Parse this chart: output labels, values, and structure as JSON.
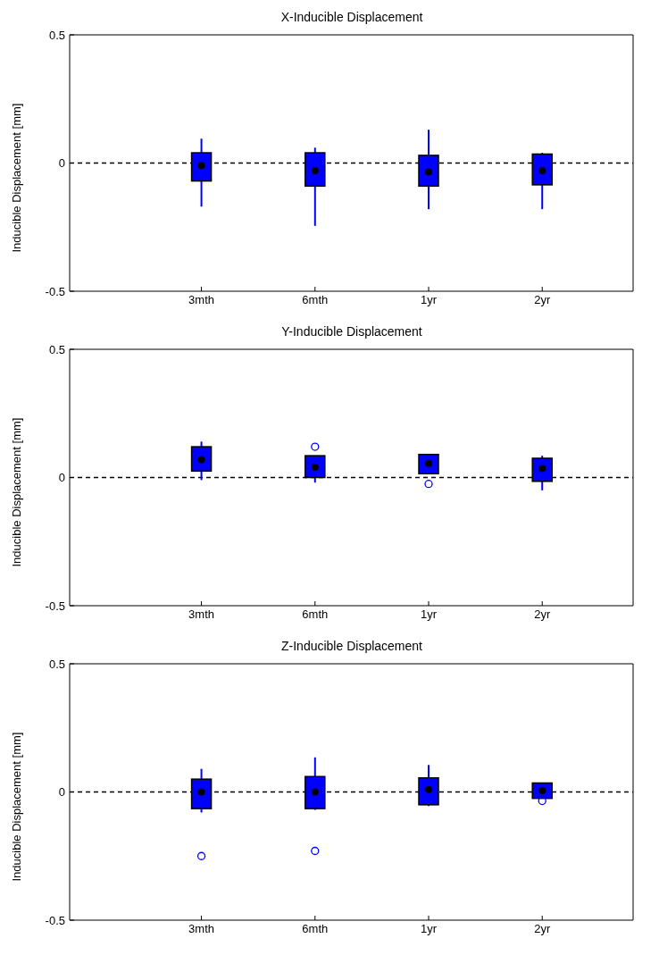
{
  "chart_data": [
    {
      "type": "box",
      "title": "X-Inducible Displacement",
      "ylabel": "Inducible Displacement [mm]",
      "categories": [
        "3mth",
        "6mth",
        "1yr",
        "2yr"
      ],
      "color": "#0000ff",
      "ylim": [
        -0.5,
        0.5
      ],
      "yticks": [
        -0.5,
        0,
        0.5
      ],
      "boxes": [
        {
          "low": -0.17,
          "q1": -0.07,
          "median": -0.01,
          "q3": 0.04,
          "high": 0.095
        },
        {
          "low": -0.245,
          "q1": -0.09,
          "median": -0.03,
          "q3": 0.04,
          "high": 0.06
        },
        {
          "low": -0.18,
          "q1": -0.09,
          "median": -0.035,
          "q3": 0.03,
          "high": 0.13
        },
        {
          "low": -0.18,
          "q1": -0.085,
          "median": -0.03,
          "q3": 0.035,
          "high": 0.04
        }
      ],
      "ref_lines": [
        {
          "axis": "y",
          "value": 0,
          "color": "#000000",
          "line_style": "dashed"
        }
      ]
    },
    {
      "type": "box",
      "title": "Y-Inducible Displacement",
      "ylabel": "Inducible Displacement [mm]",
      "categories": [
        "3mth",
        "6mth",
        "1yr",
        "2yr"
      ],
      "color": "#0000ff",
      "ylim": [
        -0.5,
        0.5
      ],
      "yticks": [
        -0.5,
        0,
        0.5
      ],
      "boxes": [
        {
          "low": -0.01,
          "q1": 0.025,
          "median": 0.07,
          "q3": 0.12,
          "high": 0.14
        },
        {
          "low": -0.02,
          "q1": 0.0,
          "median": 0.04,
          "q3": 0.085,
          "high": 0.085,
          "outliers": [
            0.12
          ]
        },
        {
          "low": 0.015,
          "q1": 0.015,
          "median": 0.055,
          "q3": 0.09,
          "high": 0.09,
          "outliers": [
            -0.025
          ]
        },
        {
          "low": -0.05,
          "q1": -0.015,
          "median": 0.035,
          "q3": 0.075,
          "high": 0.085
        }
      ],
      "ref_lines": [
        {
          "axis": "y",
          "value": 0,
          "color": "#000000",
          "line_style": "dashed"
        }
      ]
    },
    {
      "type": "box",
      "title": "Z-Inducible Displacement",
      "ylabel": "Inducible Displacement [mm]",
      "categories": [
        "3mth",
        "6mth",
        "1yr",
        "2yr"
      ],
      "color": "#0000ff",
      "ylim": [
        -0.5,
        0.5
      ],
      "yticks": [
        -0.5,
        0,
        0.5
      ],
      "boxes": [
        {
          "low": -0.08,
          "q1": -0.065,
          "median": 0.0,
          "q3": 0.05,
          "high": 0.09,
          "outliers": [
            -0.25
          ]
        },
        {
          "low": -0.07,
          "q1": -0.065,
          "median": 0.0,
          "q3": 0.06,
          "high": 0.135,
          "outliers": [
            -0.23
          ]
        },
        {
          "low": -0.055,
          "q1": -0.05,
          "median": 0.01,
          "q3": 0.055,
          "high": 0.105
        },
        {
          "low": -0.025,
          "q1": -0.025,
          "median": 0.005,
          "q3": 0.035,
          "high": 0.035,
          "outliers": [
            -0.035
          ]
        }
      ],
      "ref_lines": [
        {
          "axis": "y",
          "value": 0,
          "color": "#000000",
          "line_style": "dashed"
        }
      ]
    }
  ]
}
